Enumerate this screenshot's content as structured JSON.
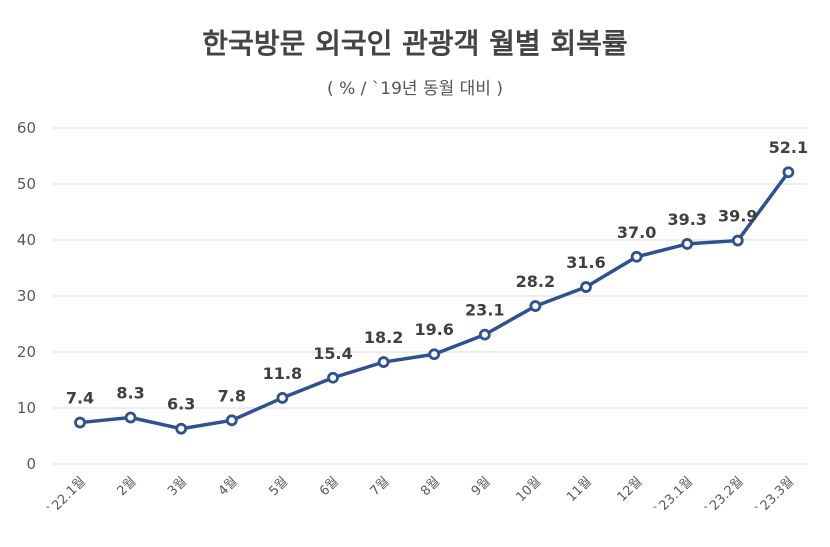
{
  "chart_data": {
    "type": "line",
    "title": "한국방문 외국인 관광객 월별 회복률",
    "subtitle": "( % / `19년 동월 대비 )",
    "categories": [
      "`22.1월",
      "2월",
      "3월",
      "4월",
      "5월",
      "6월",
      "7월",
      "8월",
      "9월",
      "10월",
      "11월",
      "12월",
      "`23.1월",
      "`23.2월",
      "`23.3월"
    ],
    "values": [
      7.4,
      8.3,
      6.3,
      7.8,
      11.8,
      15.4,
      18.2,
      19.6,
      23.1,
      28.2,
      31.6,
      37.0,
      39.3,
      39.9,
      52.1
    ],
    "value_labels": [
      "7.4",
      "8.3",
      "6.3",
      "7.8",
      "11.8",
      "15.4",
      "18.2",
      "19.6",
      "23.1",
      "28.2",
      "31.6",
      "37.0",
      "39.3",
      "39.9",
      "52.1"
    ],
    "y_ticks": [
      "0",
      "10",
      "20",
      "30",
      "40",
      "50",
      "60"
    ],
    "ylim": [
      0,
      60
    ],
    "grid": true,
    "legend": "none",
    "colors": {
      "line": "#2F528F",
      "marker_fill": "#ffffff",
      "grid": "#D9D9D9",
      "text": "#404040"
    }
  }
}
